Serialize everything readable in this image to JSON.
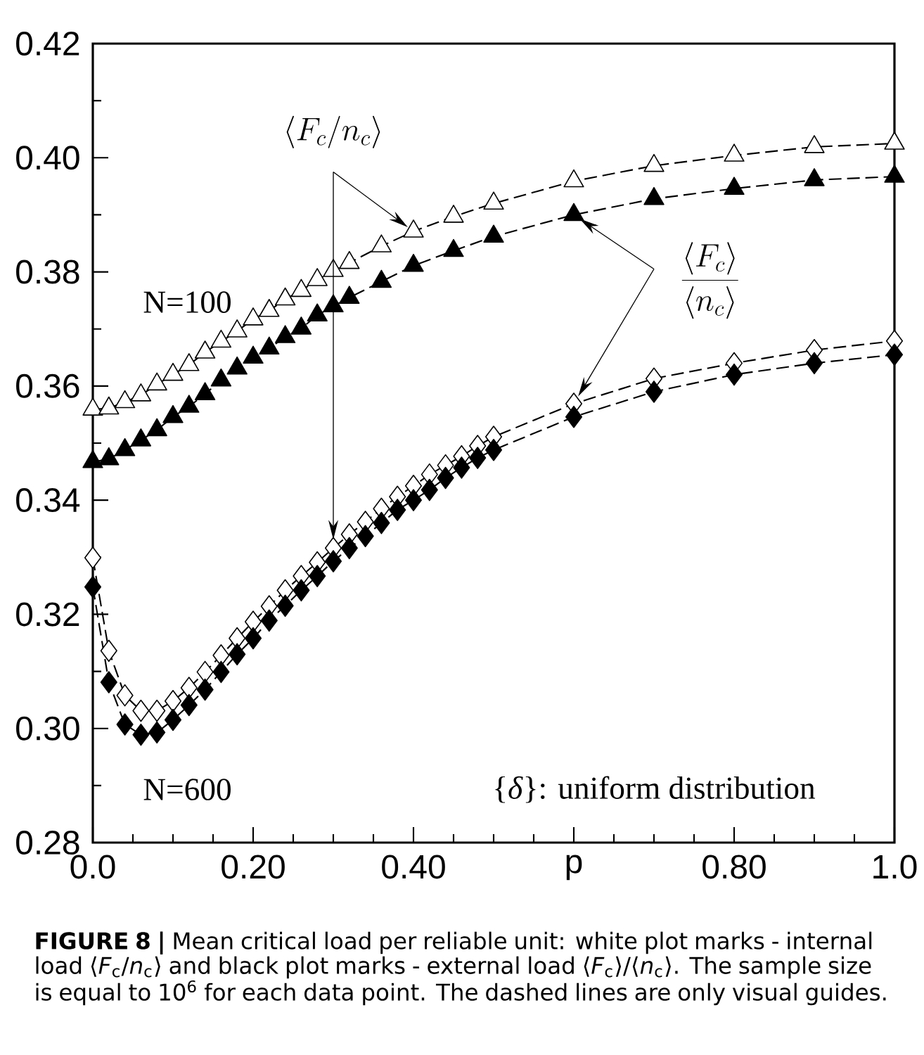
{
  "chart_data": {
    "type": "line",
    "line_style": "dashed",
    "xlim": [
      0,
      1
    ],
    "ylim": [
      0.28,
      0.42
    ],
    "xticks": [
      {
        "value": 0,
        "label": "0.0"
      },
      {
        "value": 0.2,
        "label": "0.20"
      },
      {
        "value": 0.4,
        "label": "0.40"
      },
      {
        "value": 0.6,
        "label": "p"
      },
      {
        "value": 0.8,
        "label": "0.80"
      },
      {
        "value": 1,
        "label": "1.0"
      },
      {
        "value": 0.05,
        "label": null
      },
      {
        "value": 0.1,
        "label": null
      },
      {
        "value": 0.15,
        "label": null
      },
      {
        "value": 0.25,
        "label": null
      },
      {
        "value": 0.3,
        "label": null
      },
      {
        "value": 0.35,
        "label": null
      },
      {
        "value": 0.45,
        "label": null
      },
      {
        "value": 0.5,
        "label": null
      },
      {
        "value": 0.55,
        "label": null
      },
      {
        "value": 0.65,
        "label": null
      },
      {
        "value": 0.7,
        "label": null
      },
      {
        "value": 0.75,
        "label": null
      },
      {
        "value": 0.85,
        "label": null
      },
      {
        "value": 0.9,
        "label": null
      },
      {
        "value": 0.95,
        "label": null
      }
    ],
    "yticks": [
      {
        "value": 0.28,
        "label": "0.28"
      },
      {
        "value": 0.3,
        "label": "0.30"
      },
      {
        "value": 0.32,
        "label": "0.32"
      },
      {
        "value": 0.34,
        "label": "0.34"
      },
      {
        "value": 0.36,
        "label": "0.36"
      },
      {
        "value": 0.38,
        "label": "0.38"
      },
      {
        "value": 0.4,
        "label": "0.40"
      },
      {
        "value": 0.42,
        "label": "0.42"
      },
      {
        "value": 0.29,
        "label": null
      },
      {
        "value": 0.31,
        "label": null
      },
      {
        "value": 0.33,
        "label": null
      },
      {
        "value": 0.35,
        "label": null
      },
      {
        "value": 0.37,
        "label": null
      },
      {
        "value": 0.39,
        "label": null
      },
      {
        "value": 0.41,
        "label": null
      }
    ],
    "series": [
      {
        "color": "#ffffff",
        "marker": "triangle",
        "x": [
          0,
          0.02,
          0.04,
          0.06,
          0.08,
          0.1,
          0.12,
          0.14,
          0.16,
          0.18,
          0.2,
          0.22,
          0.24,
          0.26,
          0.28,
          0.3,
          0.32,
          0.36,
          0.4,
          0.45,
          0.5,
          0.6,
          0.7,
          0.8,
          0.9,
          1
        ],
        "values": [
          0.3559,
          0.3561,
          0.3572,
          0.3584,
          0.3603,
          0.362,
          0.3637,
          0.3659,
          0.3678,
          0.3696,
          0.3717,
          0.3732,
          0.3752,
          0.3767,
          0.3786,
          0.3802,
          0.3816,
          0.3845,
          0.3871,
          0.3897,
          0.392,
          0.3959,
          0.3986,
          0.4004,
          0.4019,
          0.4025
        ]
      },
      {
        "color": "#000000",
        "marker": "triangle",
        "x": [
          0,
          0.02,
          0.04,
          0.06,
          0.08,
          0.1,
          0.12,
          0.14,
          0.16,
          0.18,
          0.2,
          0.22,
          0.24,
          0.26,
          0.28,
          0.3,
          0.32,
          0.36,
          0.4,
          0.45,
          0.5,
          0.6,
          0.7,
          0.8,
          0.9,
          1
        ],
        "values": [
          0.3467,
          0.3472,
          0.3488,
          0.3505,
          0.3523,
          0.3546,
          0.3564,
          0.3586,
          0.361,
          0.3631,
          0.365,
          0.3666,
          0.3686,
          0.3701,
          0.3724,
          0.374,
          0.3755,
          0.3783,
          0.3811,
          0.3837,
          0.3862,
          0.39,
          0.3928,
          0.3946,
          0.3961,
          0.3967
        ]
      },
      {
        "color": "#ffffff",
        "marker": "diamond",
        "x": [
          0,
          0.02,
          0.04,
          0.06,
          0.08,
          0.1,
          0.12,
          0.14,
          0.16,
          0.18,
          0.2,
          0.22,
          0.24,
          0.26,
          0.28,
          0.3,
          0.32,
          0.34,
          0.36,
          0.38,
          0.4,
          0.42,
          0.44,
          0.46,
          0.48,
          0.5,
          0.6,
          0.7,
          0.8,
          0.9,
          1
        ],
        "values": [
          0.3299,
          0.3136,
          0.3058,
          0.3031,
          0.3031,
          0.3048,
          0.3071,
          0.3099,
          0.3128,
          0.3158,
          0.3187,
          0.3214,
          0.3242,
          0.3267,
          0.3291,
          0.3316,
          0.334,
          0.3362,
          0.3385,
          0.3406,
          0.3425,
          0.3445,
          0.3461,
          0.3477,
          0.3495,
          0.3511,
          0.3569,
          0.3613,
          0.364,
          0.3663,
          0.3679
        ]
      },
      {
        "color": "#000000",
        "marker": "diamond",
        "x": [
          0,
          0.02,
          0.04,
          0.06,
          0.08,
          0.1,
          0.12,
          0.14,
          0.16,
          0.18,
          0.2,
          0.22,
          0.24,
          0.26,
          0.28,
          0.3,
          0.32,
          0.34,
          0.36,
          0.38,
          0.4,
          0.42,
          0.44,
          0.46,
          0.48,
          0.5,
          0.6,
          0.7,
          0.8,
          0.9,
          1
        ],
        "values": [
          0.3248,
          0.3081,
          0.3007,
          0.2989,
          0.2993,
          0.3015,
          0.3041,
          0.3068,
          0.3099,
          0.313,
          0.3158,
          0.3189,
          0.3215,
          0.3242,
          0.3267,
          0.3293,
          0.3316,
          0.3337,
          0.336,
          0.3383,
          0.34,
          0.3418,
          0.3439,
          0.3457,
          0.3474,
          0.3488,
          0.3546,
          0.359,
          0.362,
          0.364,
          0.3655
        ]
      }
    ],
    "annotations": [
      "\\langle F_c/n_c\\rangle",
      "\\frac{\\langle F_c\\rangle}{\\langle n_c\\rangle}",
      "N=100",
      "N=600",
      "{*δ*}: uniform distribution",
      "**FIGURE 8 |** Mean critical load per reliable unit: white plot marks - internal load ⟨*F*$_{c}$/*n*$_{c}$⟩ and black plot marks - external load ⟨*F*$_{c}$⟩/⟨*n*$_{c}$⟩. The sample size is equal to 10$^{6}$ for each data point. The dashed lines are only visual guides."
    ]
  }
}
